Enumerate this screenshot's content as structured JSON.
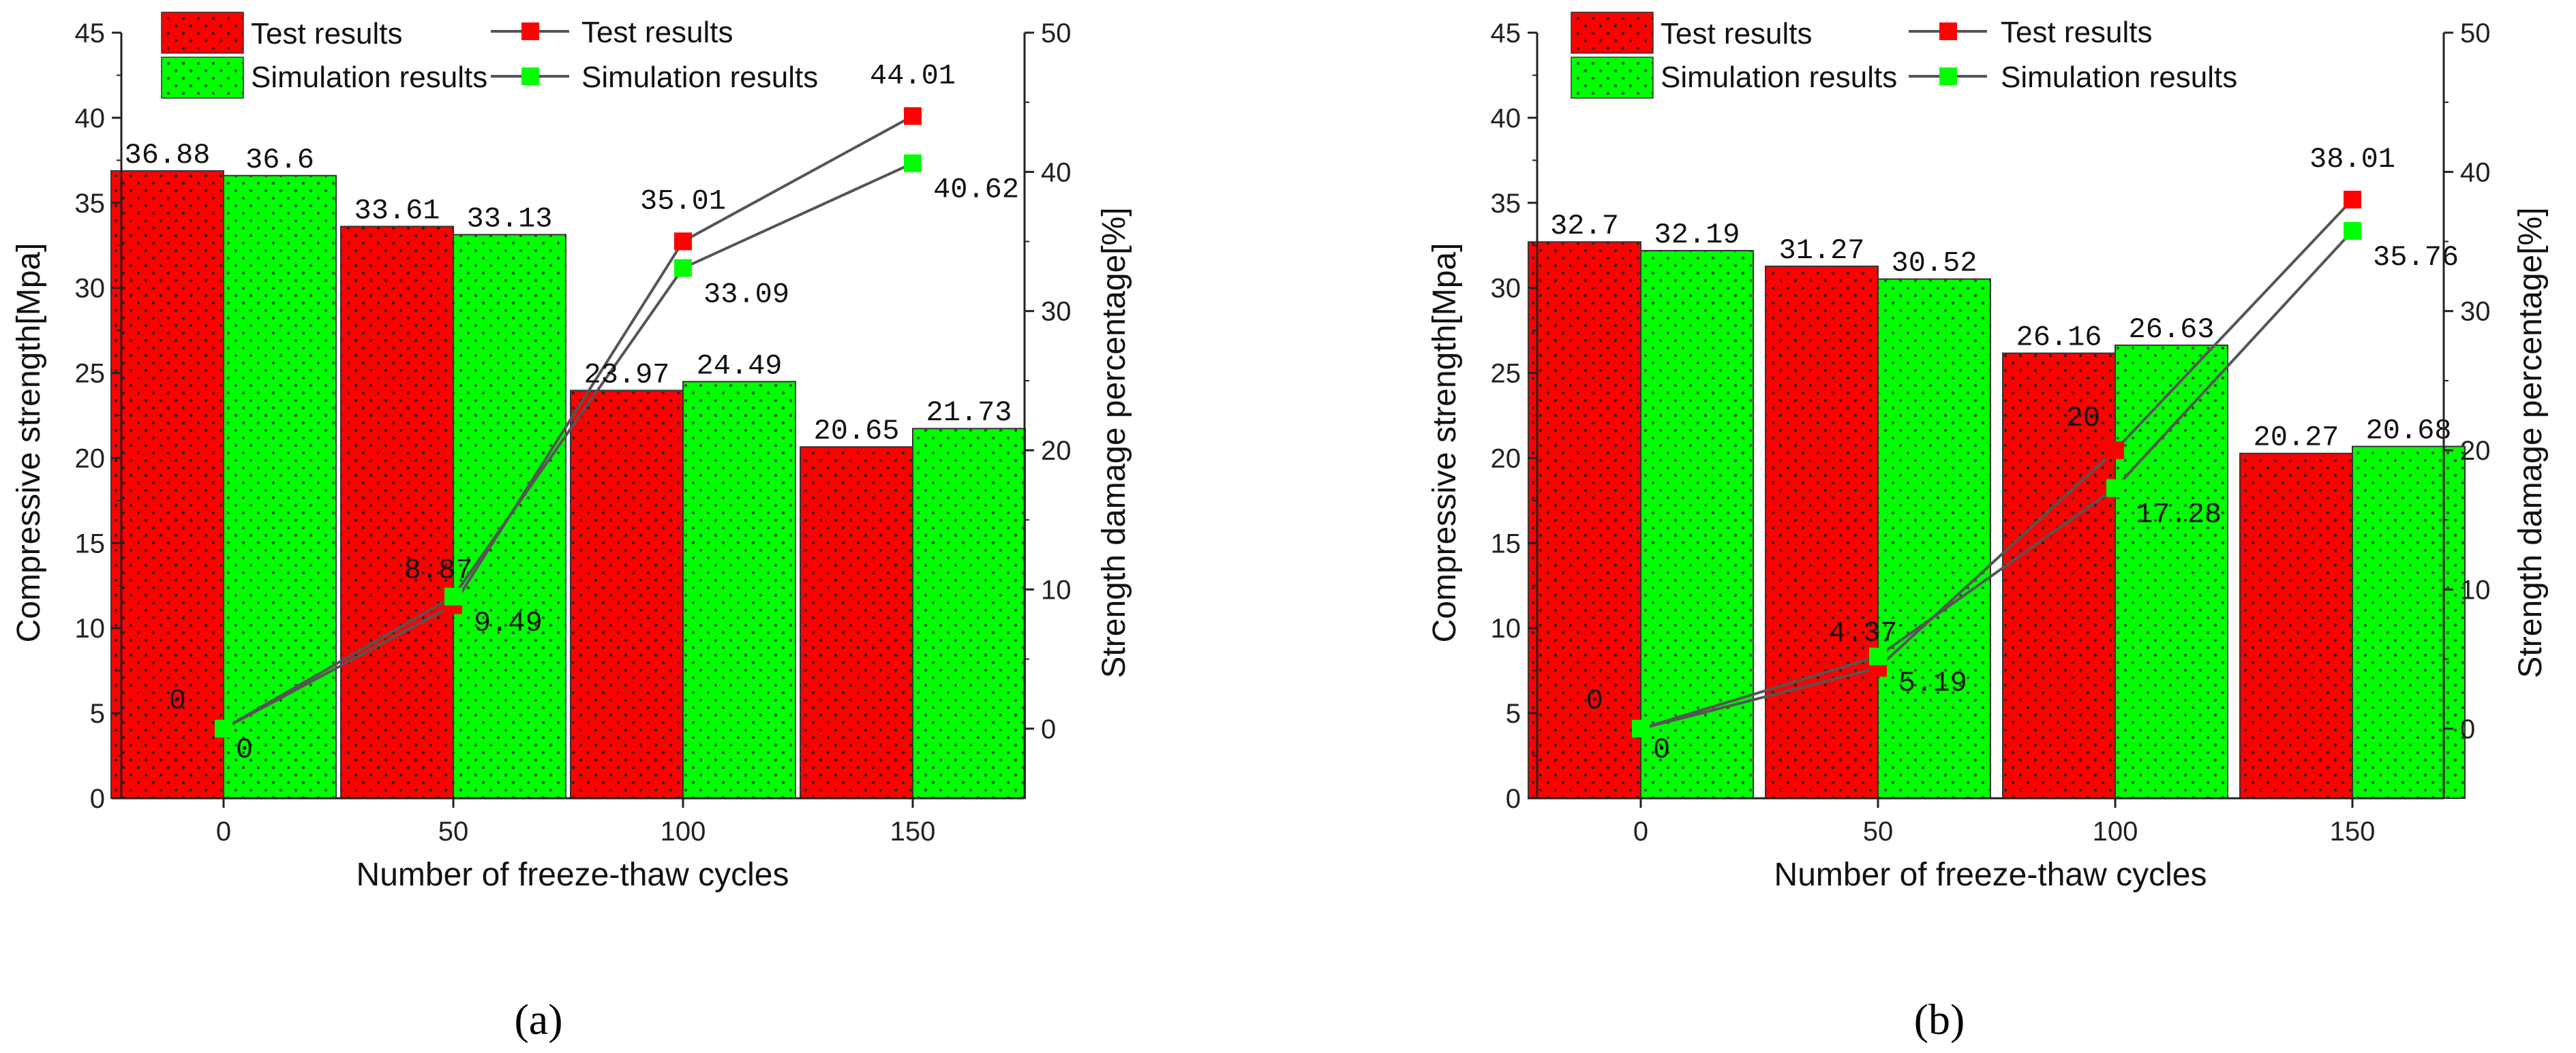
{
  "chart_data": [
    {
      "type": "bar",
      "panel_label": "(a)",
      "categories": [
        "0",
        "50",
        "100",
        "150"
      ],
      "xlabel": "Number of freeze-thaw cycles",
      "ylabel": "Compressive strength[Mpa]",
      "y2label": "Strength damage percentage[%]",
      "ylim": [
        0,
        45
      ],
      "y2lim": [
        -5,
        50
      ],
      "yticks": [
        "0",
        "5",
        "10",
        "15",
        "20",
        "25",
        "30",
        "35",
        "40",
        "45"
      ],
      "y2ticks": [
        "0",
        "10",
        "20",
        "30",
        "40",
        "50"
      ],
      "series": [
        {
          "name": "Test results",
          "kind": "bar",
          "axis": "left",
          "values": [
            36.88,
            33.61,
            23.97,
            20.65
          ],
          "labels": [
            "36.88",
            "33.61",
            "23.97",
            "20.65"
          ]
        },
        {
          "name": "Simulation results",
          "kind": "bar",
          "axis": "left",
          "values": [
            36.6,
            33.13,
            24.49,
            21.73
          ],
          "labels": [
            "36.6",
            "33.13",
            "24.49",
            "21.73"
          ]
        },
        {
          "name": "Test results",
          "kind": "line",
          "axis": "right",
          "values": [
            0,
            8.87,
            35.01,
            44.01
          ],
          "labels": [
            "0",
            "8.87",
            "35.01",
            "44.01"
          ]
        },
        {
          "name": "Simulation results",
          "kind": "line",
          "axis": "right",
          "values": [
            0,
            9.49,
            33.09,
            40.62
          ],
          "labels": [
            "0",
            "9.49",
            "33.09",
            "40.62"
          ]
        }
      ],
      "colors": {
        "test": "#ff0000",
        "simulation": "#00ff00",
        "line": "#555555"
      }
    },
    {
      "type": "bar",
      "panel_label": "(b)",
      "categories": [
        "0",
        "50",
        "100",
        "150"
      ],
      "xlabel": "Number of freeze-thaw cycles",
      "ylabel": "Compressive strength[Mpa]",
      "y2label": "Strength damage percentage[%]",
      "ylim": [
        0,
        45
      ],
      "y2lim": [
        -5,
        50
      ],
      "yticks": [
        "0",
        "5",
        "10",
        "15",
        "20",
        "25",
        "30",
        "35",
        "40",
        "45"
      ],
      "y2ticks": [
        "0",
        "10",
        "20",
        "30",
        "40",
        "50"
      ],
      "series": [
        {
          "name": "Test results",
          "kind": "bar",
          "axis": "left",
          "values": [
            32.7,
            31.27,
            26.16,
            20.27
          ],
          "labels": [
            "32.7",
            "31.27",
            "26.16",
            "20.27"
          ]
        },
        {
          "name": "Simulation results",
          "kind": "bar",
          "axis": "left",
          "values": [
            32.19,
            30.52,
            26.63,
            20.68
          ],
          "labels": [
            "32.19",
            "30.52",
            "26.63",
            "20.68"
          ]
        },
        {
          "name": "Test results",
          "kind": "line",
          "axis": "right",
          "values": [
            0,
            4.37,
            20,
            38.01
          ],
          "labels": [
            "0",
            "4.37",
            "20",
            "38.01"
          ]
        },
        {
          "name": "Simulation results",
          "kind": "line",
          "axis": "right",
          "values": [
            0,
            5.19,
            17.28,
            35.76
          ],
          "labels": [
            "0",
            "5.19",
            "17.28",
            "35.76"
          ]
        }
      ],
      "colors": {
        "test": "#ff0000",
        "simulation": "#00ff00",
        "line": "#555555"
      }
    }
  ]
}
